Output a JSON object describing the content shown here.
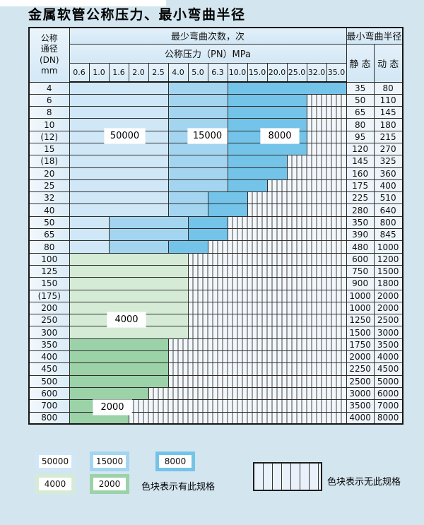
{
  "title": "金属软管公称压力、最小弯曲半径",
  "table": {
    "dn_header_lines": [
      "公称",
      "通径",
      "(DN)",
      "mm"
    ],
    "bend_times_header": "最少弯曲次数，次",
    "pressure_header": "公称压力（PN）MPa",
    "radius_header": "最小弯曲半径",
    "static_header": "静 态",
    "dynamic_header": "动 态",
    "pressures": [
      "0.6",
      "1.0",
      "1.6",
      "2.0",
      "2.5",
      "4.0",
      "5.0",
      "6.3",
      "10.0",
      "15.0",
      "20.0",
      "25.0",
      "32.0",
      "35.0"
    ],
    "rows": [
      {
        "dn": "4",
        "bands": [
          [
            "50000",
            5
          ],
          [
            "15000",
            3
          ],
          [
            "8000",
            6
          ]
        ],
        "striped": 0,
        "static": "35",
        "dynamic": "80"
      },
      {
        "dn": "6",
        "bands": [
          [
            "50000",
            5
          ],
          [
            "15000",
            3
          ],
          [
            "8000",
            4
          ]
        ],
        "striped": 2,
        "static": "50",
        "dynamic": "110"
      },
      {
        "dn": "8",
        "bands": [
          [
            "50000",
            5
          ],
          [
            "15000",
            3
          ],
          [
            "8000",
            4
          ]
        ],
        "striped": 2,
        "static": "65",
        "dynamic": "145"
      },
      {
        "dn": "10",
        "bands": [
          [
            "50000",
            5
          ],
          [
            "15000",
            3
          ],
          [
            "8000",
            4
          ]
        ],
        "striped": 2,
        "static": "80",
        "dynamic": "180"
      },
      {
        "dn": "(12)",
        "bands": [
          [
            "50000",
            5
          ],
          [
            "15000",
            3
          ],
          [
            "8000",
            4
          ]
        ],
        "striped": 2,
        "static": "95",
        "dynamic": "215"
      },
      {
        "dn": "15",
        "bands": [
          [
            "50000",
            5
          ],
          [
            "15000",
            3
          ],
          [
            "8000",
            4
          ]
        ],
        "striped": 2,
        "static": "120",
        "dynamic": "270"
      },
      {
        "dn": "(18)",
        "bands": [
          [
            "50000",
            5
          ],
          [
            "15000",
            3
          ],
          [
            "8000",
            3
          ]
        ],
        "striped": 3,
        "static": "145",
        "dynamic": "325"
      },
      {
        "dn": "20",
        "bands": [
          [
            "50000",
            5
          ],
          [
            "15000",
            3
          ],
          [
            "8000",
            3
          ]
        ],
        "striped": 3,
        "static": "160",
        "dynamic": "360"
      },
      {
        "dn": "25",
        "bands": [
          [
            "50000",
            5
          ],
          [
            "15000",
            3
          ],
          [
            "8000",
            2
          ]
        ],
        "striped": 4,
        "static": "175",
        "dynamic": "400"
      },
      {
        "dn": "32",
        "bands": [
          [
            "50000",
            5
          ],
          [
            "15000",
            2
          ],
          [
            "8000",
            2
          ]
        ],
        "striped": 5,
        "static": "225",
        "dynamic": "510"
      },
      {
        "dn": "40",
        "bands": [
          [
            "50000",
            5
          ],
          [
            "15000",
            2
          ],
          [
            "8000",
            2
          ]
        ],
        "striped": 5,
        "static": "280",
        "dynamic": "640"
      },
      {
        "dn": "50",
        "bands": [
          [
            "50000",
            2
          ],
          [
            "15000",
            4
          ],
          [
            "8000",
            2
          ]
        ],
        "striped": 6,
        "static": "350",
        "dynamic": "800"
      },
      {
        "dn": "65",
        "bands": [
          [
            "50000",
            2
          ],
          [
            "15000",
            4
          ],
          [
            "8000",
            2
          ]
        ],
        "striped": 6,
        "static": "390",
        "dynamic": "845"
      },
      {
        "dn": "80",
        "bands": [
          [
            "50000",
            2
          ],
          [
            "15000",
            3
          ],
          [
            "8000",
            2
          ]
        ],
        "striped": 7,
        "static": "480",
        "dynamic": "1000"
      },
      {
        "dn": "100",
        "bands": [
          [
            "4000",
            6
          ]
        ],
        "striped": 8,
        "static": "600",
        "dynamic": "1200"
      },
      {
        "dn": "125",
        "bands": [
          [
            "4000",
            6
          ]
        ],
        "striped": 8,
        "static": "750",
        "dynamic": "1500"
      },
      {
        "dn": "150",
        "bands": [
          [
            "4000",
            6
          ]
        ],
        "striped": 8,
        "static": "900",
        "dynamic": "1800"
      },
      {
        "dn": "(175)",
        "bands": [
          [
            "4000",
            6
          ]
        ],
        "striped": 8,
        "static": "1000",
        "dynamic": "2000"
      },
      {
        "dn": "200",
        "bands": [
          [
            "4000",
            6
          ]
        ],
        "striped": 8,
        "static": "1000",
        "dynamic": "2000"
      },
      {
        "dn": "250",
        "bands": [
          [
            "4000",
            6
          ]
        ],
        "striped": 8,
        "static": "1250",
        "dynamic": "2500"
      },
      {
        "dn": "300",
        "bands": [
          [
            "4000",
            6
          ]
        ],
        "striped": 8,
        "static": "1500",
        "dynamic": "3000"
      },
      {
        "dn": "350",
        "bands": [
          [
            "2000",
            5
          ]
        ],
        "striped": 9,
        "static": "1750",
        "dynamic": "3500"
      },
      {
        "dn": "400",
        "bands": [
          [
            "2000",
            5
          ]
        ],
        "striped": 9,
        "static": "2000",
        "dynamic": "4000"
      },
      {
        "dn": "450",
        "bands": [
          [
            "2000",
            5
          ]
        ],
        "striped": 9,
        "static": "2250",
        "dynamic": "4500"
      },
      {
        "dn": "500",
        "bands": [
          [
            "2000",
            5
          ]
        ],
        "striped": 9,
        "static": "2500",
        "dynamic": "5000"
      },
      {
        "dn": "600",
        "bands": [
          [
            "2000",
            4
          ]
        ],
        "striped": 10,
        "static": "3000",
        "dynamic": "6000"
      },
      {
        "dn": "700",
        "bands": [
          [
            "2000",
            3
          ]
        ],
        "striped": 11,
        "static": "3500",
        "dynamic": "7000"
      },
      {
        "dn": "800",
        "bands": [
          [
            "2000",
            3
          ]
        ],
        "striped": 11,
        "static": "4000",
        "dynamic": "8000"
      }
    ]
  },
  "overlay_labels": [
    {
      "text": "50000"
    },
    {
      "text": "15000"
    },
    {
      "text": "8000"
    },
    {
      "text": "4000"
    },
    {
      "text": "2000"
    }
  ],
  "legend": {
    "swatches": [
      "50000",
      "15000",
      "8000",
      "4000",
      "2000"
    ],
    "has_spec_note": "色块表示有此规格",
    "no_spec_note": "色块表示无此规格"
  },
  "colors": {
    "band_50000": "#cfe7f6",
    "band_15000": "#a4d5f0",
    "band_8000": "#74c3e8",
    "band_4000": "#d5ebd6",
    "band_2000": "#9bd2a8",
    "grid_line": "#2d2d2d",
    "page_background": "#d3e5ef"
  }
}
